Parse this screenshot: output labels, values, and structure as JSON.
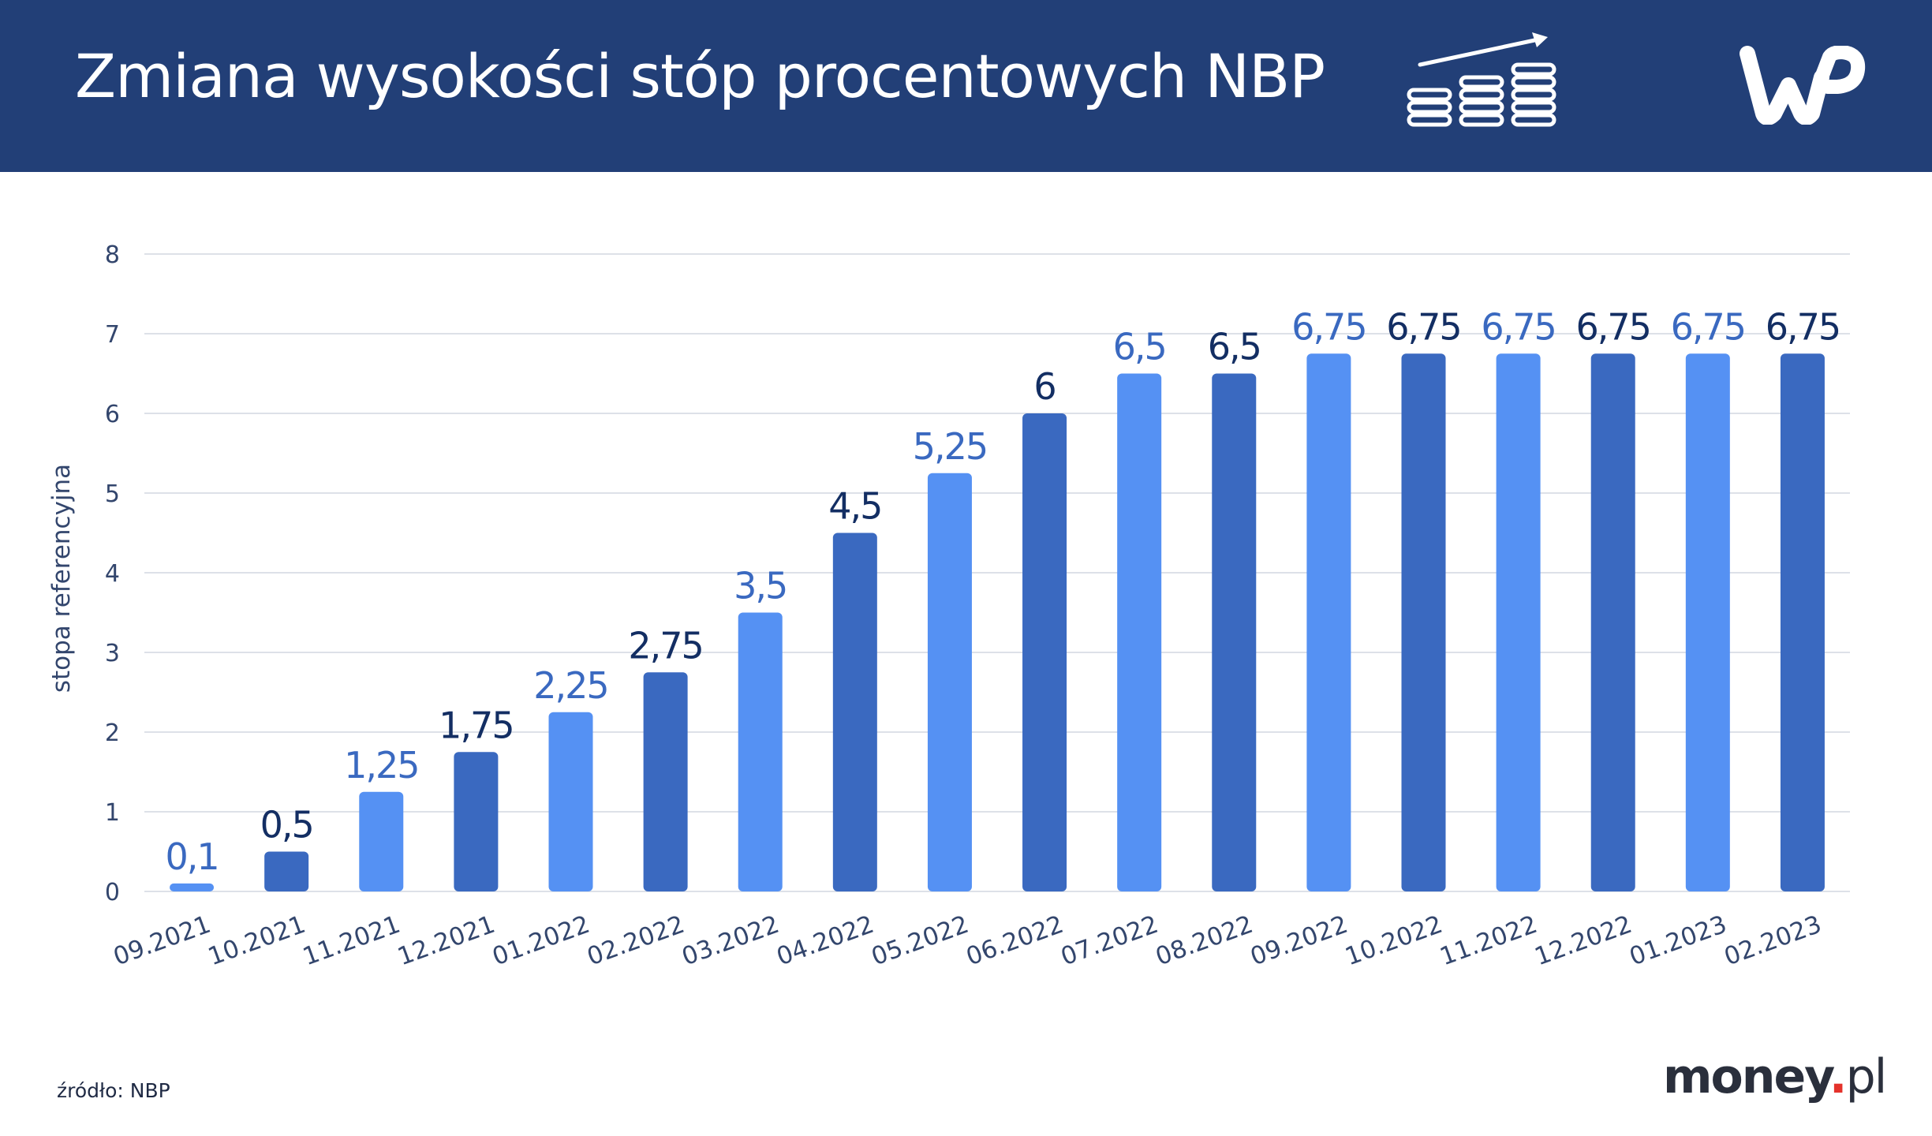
{
  "header": {
    "title": "Zmiana wysokości stóp procentowych NBP",
    "background": "#223f77",
    "icons": [
      "coins-growth-icon",
      "wp-logo"
    ]
  },
  "chart_data": {
    "type": "bar",
    "categories": [
      "09.2021",
      "10.2021",
      "11.2021",
      "12.2021",
      "01.2022",
      "02.2022",
      "03.2022",
      "04.2022",
      "05.2022",
      "06.2022",
      "07.2022",
      "08.2022",
      "09.2022",
      "10.2022",
      "11.2022",
      "12.2022",
      "01.2023",
      "02.2023"
    ],
    "values": [
      0.1,
      0.5,
      1.25,
      1.75,
      2.25,
      2.75,
      3.5,
      4.5,
      5.25,
      6,
      6.5,
      6.5,
      6.75,
      6.75,
      6.75,
      6.75,
      6.75,
      6.75
    ],
    "data_labels": [
      "0,1",
      "0,5",
      "1,25",
      "1,75",
      "2,25",
      "2,75",
      "3,5",
      "4,5",
      "5,25",
      "6",
      "6,5",
      "6,5",
      "6,75",
      "6,75",
      "6,75",
      "6,75",
      "6,75",
      "6,75"
    ],
    "ylabel": "stopa referencyjna",
    "ylim": [
      0,
      8
    ],
    "yticks": [
      0,
      1,
      2,
      3,
      4,
      5,
      6,
      7,
      8
    ],
    "grid": true,
    "colors": {
      "light_bar": "#5591f3",
      "dark_bar": "#3a69c0",
      "light_label": "#3a69c0",
      "dark_label": "#132e63",
      "axis_text": "#33466d",
      "grid": "#dde1e8"
    }
  },
  "footer": {
    "source": "źródło: NBP",
    "brand_main": "money",
    "brand_dot": ".",
    "brand_suffix": "pl"
  }
}
